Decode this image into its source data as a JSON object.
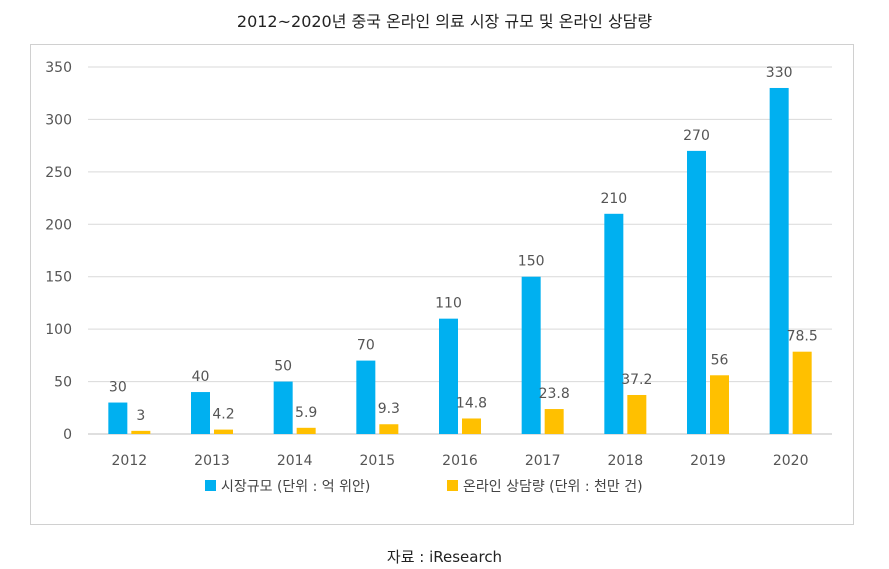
{
  "title": "2012~2020년 중국 온라인 의료 시장 규모 및 온라인 상담량",
  "source": "자료 : iResearch",
  "chart_data": {
    "type": "bar",
    "categories": [
      "2012",
      "2013",
      "2014",
      "2015",
      "2016",
      "2017",
      "2018",
      "2019",
      "2020"
    ],
    "series": [
      {
        "name": "시장규모 (단위 : 억 위안)",
        "color": "#00b0f0",
        "values": [
          30,
          40,
          50,
          70,
          110,
          150,
          210,
          270,
          330
        ],
        "labels": [
          "30",
          "40",
          "50",
          "70",
          "110",
          "150",
          "210",
          "270",
          "330"
        ]
      },
      {
        "name": "온라인 상담량 (단위 : 천만 건)",
        "color": "#ffc000",
        "values": [
          3,
          4.2,
          5.9,
          9.3,
          14.8,
          23.8,
          37.2,
          56,
          78.5
        ],
        "labels": [
          "3",
          "4.2",
          "5.9",
          "9.3",
          "14.8",
          "23.8",
          "37.2",
          "56",
          "78.5"
        ]
      }
    ],
    "yticks": [
      "0",
      "50",
      "100",
      "150",
      "200",
      "250",
      "300",
      "350"
    ],
    "ylim": [
      0,
      350
    ],
    "grid": true,
    "legend_position": "bottom"
  }
}
